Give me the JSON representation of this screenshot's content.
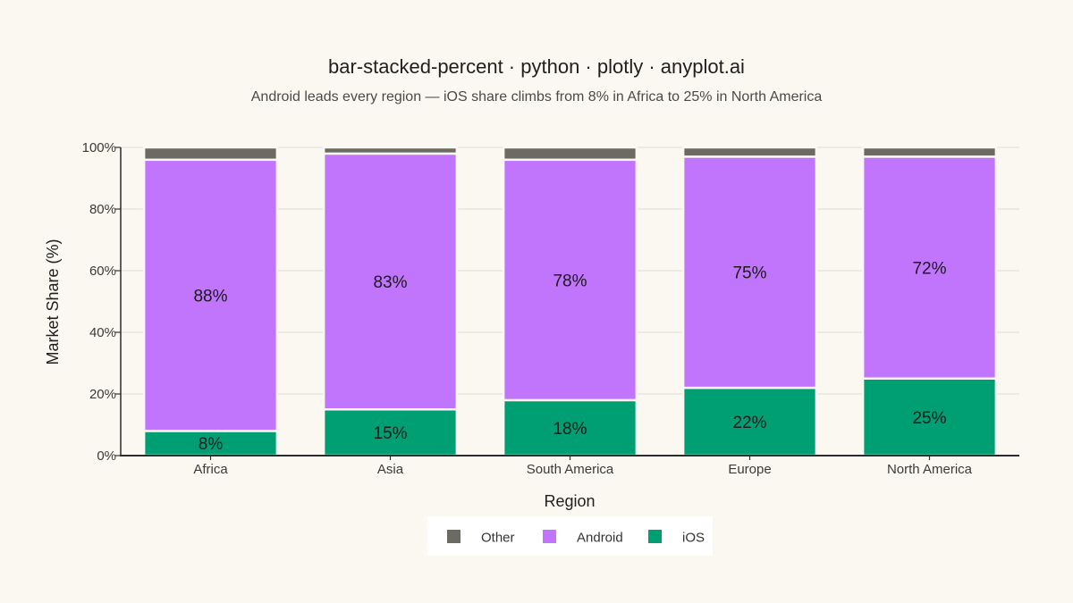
{
  "chart_data": {
    "type": "bar",
    "stacking": "percent",
    "title": "bar-stacked-percent · python · plotly · anyplot.ai",
    "subtitle": "Android leads every region — iOS share climbs from 8% in Africa to 25% in North America",
    "xlabel": "Region",
    "ylabel": "Market Share (%)",
    "ylim": [
      0,
      100
    ],
    "y_ticks": [
      "0%",
      "20%",
      "40%",
      "60%",
      "80%",
      "100%"
    ],
    "grid": true,
    "legend_position": "bottom-center",
    "categories": [
      "Africa",
      "Asia",
      "South America",
      "Europe",
      "North America"
    ],
    "series": [
      {
        "name": "iOS",
        "color": "#009E73",
        "values": [
          8,
          15,
          18,
          22,
          25
        ],
        "labels": [
          "8%",
          "15%",
          "18%",
          "22%",
          "25%"
        ]
      },
      {
        "name": "Android",
        "color": "#C174FC",
        "values": [
          88,
          83,
          78,
          75,
          72
        ],
        "labels": [
          "88%",
          "83%",
          "78%",
          "75%",
          "72%"
        ]
      },
      {
        "name": "Other",
        "color": "#6B6A63",
        "values": [
          4,
          2,
          4,
          3,
          3
        ],
        "labels": []
      }
    ],
    "legend_order": [
      "Other",
      "Android",
      "iOS"
    ]
  }
}
